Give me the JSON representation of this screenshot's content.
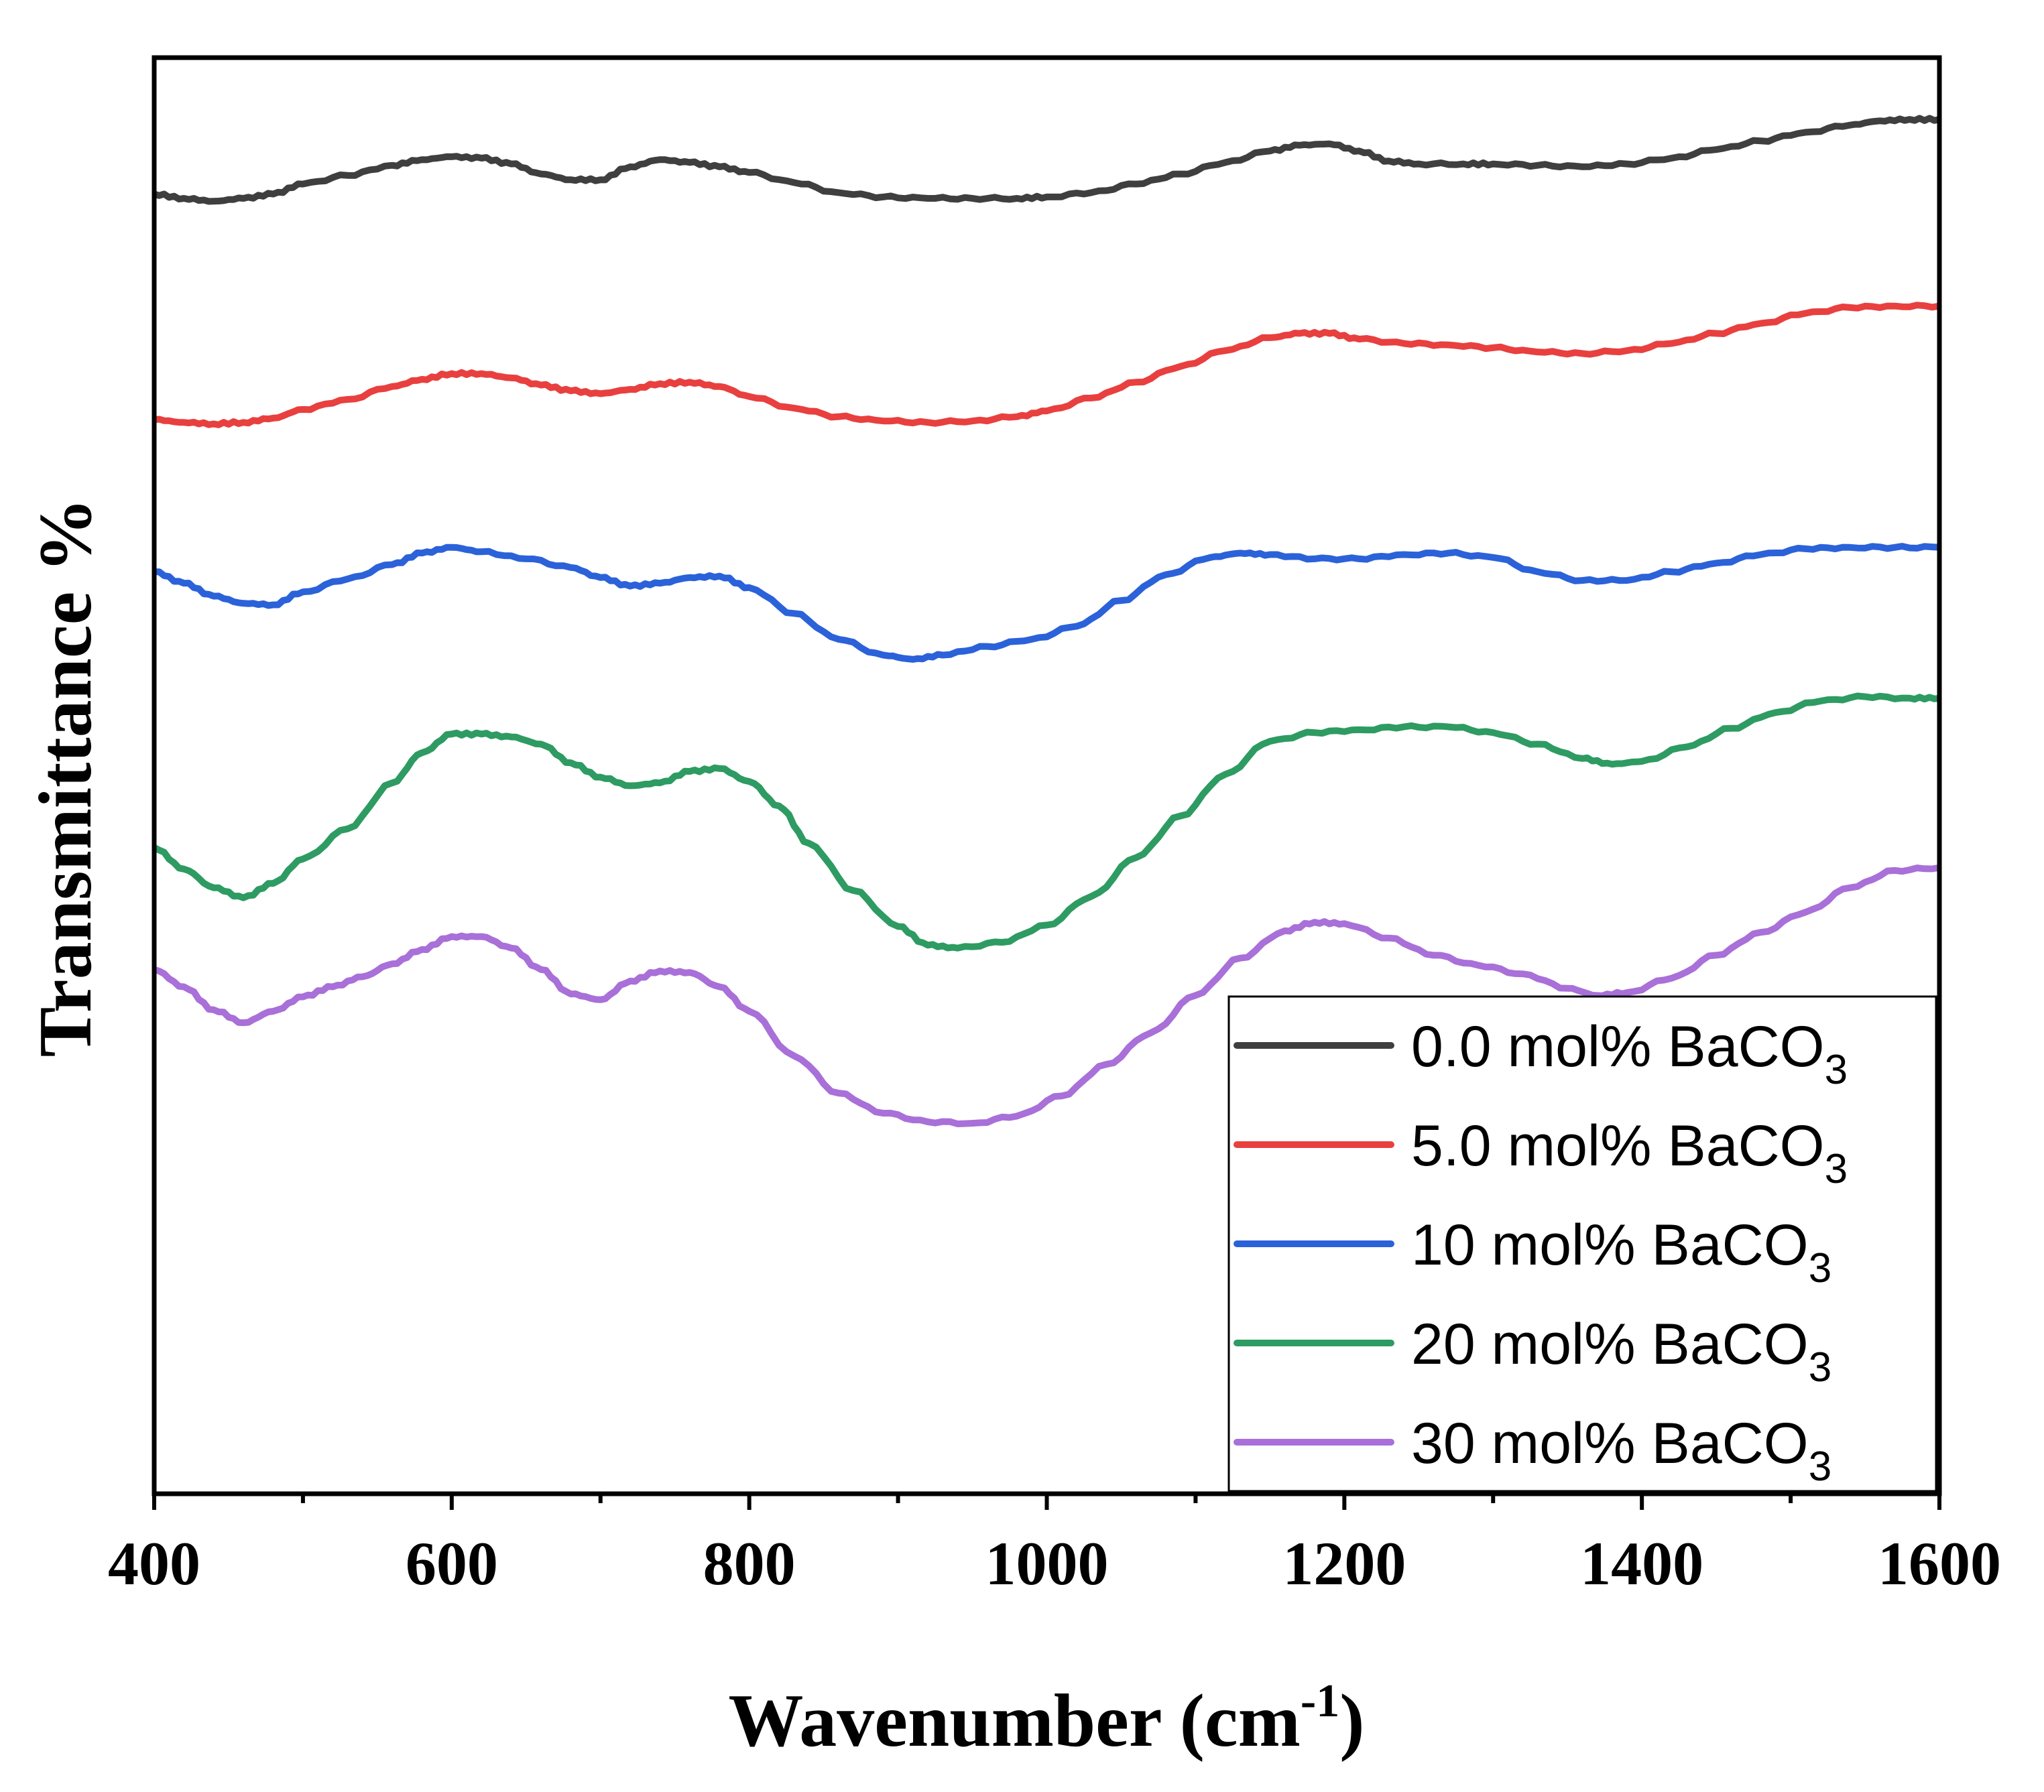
{
  "chart_data": {
    "type": "line",
    "title": "",
    "xlabel": "Wavenumber (cm",
    "xlabel_sup": "-1",
    "xlabel_close": ")",
    "ylabel": "Transmittance %",
    "xlim": [
      400,
      1600
    ],
    "ylim": [
      0,
      100
    ],
    "x_ticks": [
      400,
      600,
      800,
      1000,
      1200,
      1400,
      1600
    ],
    "x_tick_labels": [
      "400",
      "600",
      "800",
      "1000",
      "1200",
      "1400",
      "1600"
    ],
    "x_minor_ticks": [
      500,
      700,
      900,
      1100,
      1300,
      1500
    ],
    "y_ticks_shown": false,
    "grid": false,
    "legend_position": "bottom-right",
    "series": [
      {
        "name": "0.0 mol% BaCO3",
        "label_main": "0.0 mol% BaCO",
        "label_sub": "3",
        "color": "#3f3f3f",
        "x": [
          400,
          420,
          440,
          460,
          480,
          500,
          530,
          560,
          580,
          600,
          620,
          640,
          660,
          680,
          700,
          720,
          740,
          760,
          780,
          800,
          830,
          860,
          890,
          920,
          950,
          980,
          1000,
          1030,
          1060,
          1090,
          1120,
          1150,
          1170,
          1190,
          1210,
          1230,
          1250,
          1280,
          1300,
          1330,
          1360,
          1390,
          1420,
          1450,
          1480,
          1510,
          1540,
          1560,
          1580,
          1600
        ],
        "y": [
          90.5,
          90.2,
          90.0,
          90.2,
          90.5,
          91.2,
          91.8,
          92.5,
          92.9,
          93.1,
          93.0,
          92.6,
          91.9,
          91.5,
          91.5,
          92.4,
          92.9,
          92.7,
          92.4,
          92.0,
          91.3,
          90.6,
          90.3,
          90.2,
          90.2,
          90.2,
          90.3,
          90.6,
          91.2,
          91.9,
          92.7,
          93.5,
          93.9,
          94.0,
          93.5,
          92.8,
          92.6,
          92.6,
          92.6,
          92.5,
          92.4,
          92.6,
          93.0,
          93.6,
          94.2,
          94.8,
          95.3,
          95.6,
          95.7,
          95.7
        ]
      },
      {
        "name": "5.0 mol% BaCO3",
        "label_main": "5.0 mol% BaCO",
        "label_sub": "3",
        "color": "#e8403f",
        "x": [
          400,
          420,
          440,
          460,
          480,
          500,
          530,
          560,
          580,
          600,
          620,
          640,
          660,
          680,
          700,
          720,
          740,
          760,
          780,
          800,
          830,
          860,
          890,
          920,
          950,
          980,
          1000,
          1030,
          1060,
          1090,
          1120,
          1150,
          1170,
          1190,
          1210,
          1240,
          1270,
          1300,
          1330,
          1360,
          1390,
          1420,
          1450,
          1480,
          1510,
          1540,
          1570,
          1600
        ],
        "y": [
          74.8,
          74.6,
          74.5,
          74.6,
          74.9,
          75.5,
          76.2,
          77.1,
          77.6,
          78.0,
          78.0,
          77.7,
          77.2,
          76.8,
          76.6,
          76.9,
          77.3,
          77.4,
          77.1,
          76.4,
          75.6,
          75.0,
          74.7,
          74.6,
          74.7,
          75.0,
          75.4,
          76.3,
          77.4,
          78.5,
          79.6,
          80.5,
          80.8,
          80.8,
          80.4,
          80.1,
          80.0,
          79.8,
          79.5,
          79.4,
          79.6,
          80.1,
          80.8,
          81.5,
          82.2,
          82.6,
          82.7,
          82.7
        ]
      },
      {
        "name": "10 mol% BaCO3",
        "label_main": "10 mol% BaCO",
        "label_sub": "3",
        "color": "#2b62d9",
        "x": [
          400,
          420,
          440,
          460,
          480,
          500,
          530,
          560,
          580,
          600,
          620,
          650,
          680,
          700,
          720,
          740,
          760,
          780,
          800,
          830,
          860,
          890,
          910,
          930,
          960,
          990,
          1020,
          1050,
          1080,
          1110,
          1130,
          1150,
          1180,
          1210,
          1240,
          1270,
          1300,
          1330,
          1360,
          1390,
          1420,
          1450,
          1480,
          1510,
          1540,
          1570,
          1600
        ],
        "y": [
          64.2,
          63.4,
          62.5,
          62.0,
          61.9,
          62.8,
          63.7,
          64.7,
          65.5,
          65.9,
          65.6,
          65.1,
          64.5,
          63.8,
          63.2,
          63.4,
          63.8,
          63.9,
          63.1,
          61.3,
          59.5,
          58.4,
          58.1,
          58.4,
          59.0,
          59.5,
          60.4,
          62.2,
          64.0,
          65.2,
          65.5,
          65.4,
          65.1,
          65.1,
          65.4,
          65.5,
          65.2,
          64.2,
          63.6,
          63.6,
          64.2,
          64.8,
          65.4,
          65.8,
          65.9,
          65.9,
          65.9
        ]
      },
      {
        "name": "20 mol% BaCO3",
        "label_main": "20 mol% BaCO",
        "label_sub": "3",
        "color": "#2e9b62",
        "x": [
          400,
          420,
          440,
          460,
          480,
          500,
          530,
          560,
          580,
          600,
          620,
          640,
          660,
          680,
          700,
          720,
          740,
          760,
          780,
          800,
          820,
          840,
          870,
          900,
          920,
          940,
          970,
          1000,
          1030,
          1060,
          1090,
          1120,
          1150,
          1180,
          1210,
          1240,
          1270,
          1300,
          1330,
          1360,
          1380,
          1400,
          1430,
          1460,
          1490,
          1520,
          1550,
          1580,
          1600
        ],
        "y": [
          45.0,
          43.5,
          42.2,
          41.5,
          42.5,
          44.2,
          46.3,
          49.5,
          51.6,
          52.9,
          52.9,
          52.7,
          52.2,
          50.9,
          49.9,
          49.3,
          49.5,
          50.3,
          50.5,
          49.6,
          47.9,
          45.3,
          42.0,
          39.5,
          38.2,
          38.0,
          38.4,
          39.6,
          41.6,
          44.3,
          47.2,
          50.1,
          52.4,
          53.0,
          53.2,
          53.4,
          53.4,
          53.0,
          52.2,
          51.2,
          50.8,
          51.0,
          52.0,
          53.3,
          54.4,
          55.2,
          55.5,
          55.4,
          55.4
        ]
      },
      {
        "name": "30 mol% BaCO3",
        "label_main": "30 mol% BaCO",
        "label_sub": "3",
        "color": "#a870d8",
        "x": [
          400,
          420,
          440,
          460,
          480,
          500,
          520,
          540,
          560,
          580,
          600,
          620,
          640,
          660,
          680,
          700,
          720,
          740,
          760,
          780,
          800,
          830,
          860,
          890,
          920,
          950,
          980,
          1010,
          1040,
          1070,
          1100,
          1130,
          1160,
          1180,
          1200,
          1230,
          1260,
          1290,
          1320,
          1350,
          1370,
          1390,
          1420,
          1450,
          1480,
          1510,
          1540,
          1570,
          1600
        ],
        "y": [
          36.5,
          35.3,
          33.7,
          32.8,
          33.6,
          34.6,
          35.3,
          36.0,
          36.9,
          37.9,
          38.8,
          38.8,
          38.0,
          36.5,
          34.8,
          34.4,
          35.7,
          36.4,
          36.3,
          35.3,
          33.6,
          30.5,
          27.9,
          26.5,
          25.9,
          25.8,
          26.3,
          27.7,
          29.9,
          32.1,
          34.7,
          37.3,
          39.2,
          39.8,
          39.7,
          38.7,
          37.5,
          36.8,
          36.2,
          35.2,
          34.7,
          34.9,
          35.9,
          37.5,
          39.1,
          40.5,
          42.2,
          43.4,
          43.6
        ]
      }
    ]
  }
}
